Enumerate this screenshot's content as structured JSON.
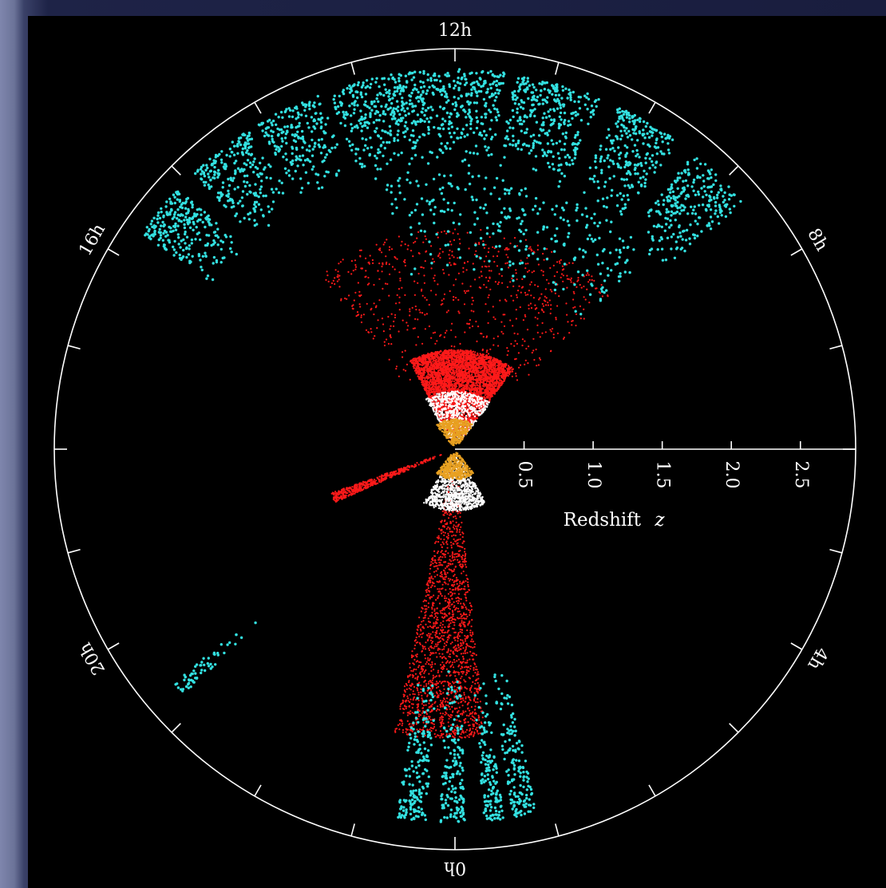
{
  "chart_data": {
    "type": "scatter",
    "projection": "polar-wedge",
    "angular_axis": {
      "unit": "right-ascension-hours",
      "labels": [
        "12h",
        "16h",
        "20h",
        "0h",
        "4h",
        "8h"
      ],
      "label_hours": [
        12,
        16,
        20,
        0,
        4,
        8
      ],
      "tick_interval_hours": 1
    },
    "radial_axis": {
      "title": "Redshift",
      "title_symbol": "z",
      "tick_labels": [
        "0.5",
        "1.0",
        "1.5",
        "2.0",
        "2.5"
      ],
      "tick_values": [
        0.5,
        1.0,
        1.5,
        2.0,
        2.5
      ],
      "range": [
        0,
        2.9
      ],
      "axis_direction_hours": 6
    },
    "series": [
      {
        "key": "cyan",
        "color": "#33e0e0",
        "clusters": [
          {
            "ra_range": [
              15.7,
              15.1
            ],
            "z_range": [
              2.08,
              2.75
            ],
            "density": 260
          },
          {
            "ra_range": [
              14.9,
              14.2
            ],
            "z_range": [
              2.08,
              2.75
            ],
            "density": 240
          },
          {
            "ra_range": [
              14.1,
              13.4
            ],
            "z_range": [
              2.08,
              2.75
            ],
            "density": 220
          },
          {
            "ra_range": [
              13.3,
              11.5
            ],
            "z_range": [
              2.0,
              2.75
            ],
            "density": 640
          },
          {
            "ra_range": [
              11.4,
              10.5
            ],
            "z_range": [
              2.0,
              2.75
            ],
            "density": 320
          },
          {
            "ra_range": [
              10.3,
              9.6
            ],
            "z_range": [
              2.0,
              2.75
            ],
            "density": 250
          },
          {
            "ra_range": [
              9.4,
              8.7
            ],
            "z_range": [
              1.95,
              2.75
            ],
            "density": 250
          },
          {
            "ra_range": [
              13.0,
              9.0
            ],
            "z_range": [
              1.2,
              2.0
            ],
            "density": 280
          },
          {
            "ra_range": [
              20.8,
              20.65
            ],
            "z_range": [
              1.8,
              2.65
            ],
            "density": 60
          },
          {
            "ra_range": [
              0.85,
              0.6
            ],
            "z_range": [
              1.6,
              2.7
            ],
            "density": 160
          },
          {
            "ra_range": [
              0.5,
              0.3
            ],
            "z_range": [
              1.6,
              2.7
            ],
            "density": 140
          },
          {
            "ra_range": [
              0.1,
              23.85
            ],
            "z_range": [
              1.6,
              2.7
            ],
            "density": 160
          },
          {
            "ra_range": [
              23.7,
              23.4
            ],
            "z_range": [
              1.6,
              2.7
            ],
            "density": 180
          }
        ]
      },
      {
        "key": "red",
        "color": "#ff1a1a",
        "clusters": [
          {
            "ra_range": [
              13.8,
              9.6
            ],
            "z_range": [
              0.05,
              0.72
            ],
            "density": 4500
          },
          {
            "ra_range": [
              14.5,
              9.0
            ],
            "z_range": [
              0.5,
              1.6
            ],
            "density": 700
          },
          {
            "ra_range": [
              19.6,
              19.3
            ],
            "z_range": [
              0.05,
              0.95
            ],
            "density": 500
          },
          {
            "ra_range": [
              0.4,
              23.2
            ],
            "z_range": [
              0.05,
              2.1
            ],
            "density": 1700
          }
        ]
      },
      {
        "key": "white",
        "color": "#ffffff",
        "clusters": [
          {
            "ra_range": [
              14.0,
              9.5
            ],
            "z_range": [
              0.05,
              0.42
            ],
            "density": 700
          },
          {
            "ra_range": [
              2.0,
              22.0
            ],
            "z_range": [
              0.05,
              0.45
            ],
            "density": 1000
          }
        ]
      },
      {
        "key": "orange",
        "color": "#e8a020",
        "clusters": [
          {
            "ra_range": [
              14.5,
              9.5
            ],
            "z_range": [
              0.02,
              0.22
            ],
            "density": 450
          },
          {
            "ra_range": [
              2.5,
              21.5
            ],
            "z_range": [
              0.02,
              0.22
            ],
            "density": 450
          }
        ]
      }
    ],
    "grid": false,
    "background": "#000000",
    "axis_color": "#ffffff"
  }
}
